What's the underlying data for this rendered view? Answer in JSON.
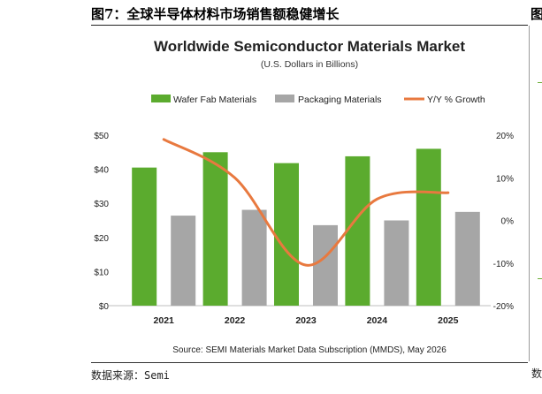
{
  "figure": {
    "caption": "图7：全球半导体材料市场销售额稳健增长",
    "source_note": "数据来源：Semi"
  },
  "right_panel_fragment": {
    "title_char": "图",
    "bottom_char": "数"
  },
  "colors": {
    "wafer_fab": "#5bab2e",
    "packaging": "#a6a6a6",
    "growth": "#e8793f"
  },
  "chart_data": {
    "type": "bar",
    "title": "Worldwide Semiconductor Materials Market",
    "subtitle": "(U.S. Dollars in Billions)",
    "categories": [
      "2021",
      "2022",
      "2023",
      "2024",
      "2025"
    ],
    "series": [
      {
        "name": "Wafer Fab Materials",
        "type": "bar",
        "axis": "left",
        "values": [
          40.5,
          45.0,
          41.8,
          43.8,
          46.0
        ]
      },
      {
        "name": "Packaging Materials",
        "type": "bar",
        "axis": "left",
        "values": [
          26.4,
          28.1,
          23.6,
          25.0,
          27.5
        ]
      },
      {
        "name": "Y/Y % Growth",
        "type": "line",
        "axis": "right",
        "values": [
          19.0,
          10.0,
          -10.5,
          5.0,
          6.5
        ]
      }
    ],
    "y_left": {
      "ylim": [
        0,
        50
      ],
      "ticks": [
        "$0",
        "$10",
        "$20",
        "$30",
        "$40",
        "$50"
      ]
    },
    "y_right": {
      "ylim": [
        -20,
        20
      ],
      "ticks": [
        "-20%",
        "-10%",
        "0%",
        "10%",
        "20%"
      ]
    },
    "grid": false,
    "legend_position": "top",
    "source": "Source:  SEMI Materials Market Data Subscription (MMDS), May 2026"
  }
}
